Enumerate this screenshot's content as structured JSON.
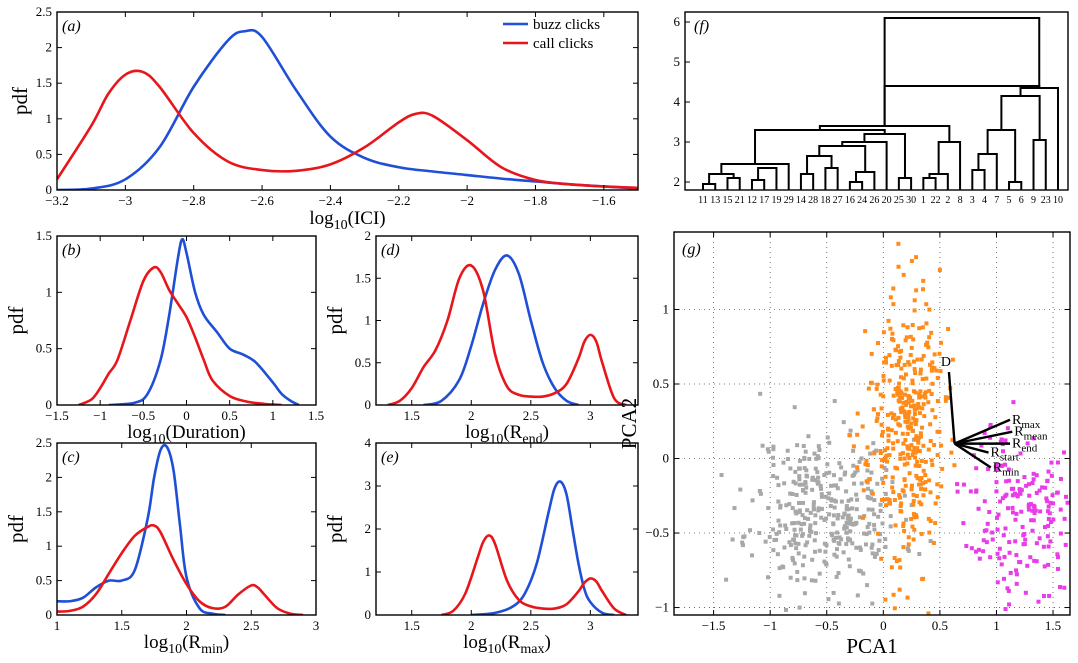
{
  "colors": {
    "buzz": "#1f4fd6",
    "call": "#e8161b",
    "cluster_gray": "#a8a8a8",
    "cluster_orange": "#ff8c1a",
    "cluster_magenta": "#e83de8"
  },
  "chart_data": [
    {
      "panel": "(a)",
      "type": "line",
      "xlabel_base": "log",
      "xlabel_sub": "10",
      "xlabel_rest": "(ICI)",
      "ylabel": "pdf",
      "xlim": [
        -3.2,
        -1.5
      ],
      "ylim": [
        0,
        2.5
      ],
      "xticks": [
        -3.2,
        -3,
        -2.8,
        -2.6,
        -2.4,
        -2.2,
        -2,
        -1.8,
        -1.6
      ],
      "xtick_labels": [
        "−3.2",
        "−3",
        "−2.8",
        "−2.6",
        "−2.4",
        "−2.2",
        "−2",
        "−1.8",
        "−1.6"
      ],
      "yticks": [
        0,
        0.5,
        1,
        1.5,
        2,
        2.5
      ],
      "ytick_labels": [
        "0",
        "0.5",
        "1",
        "1.5",
        "2",
        "2.5"
      ],
      "legend": [
        "buzz clicks",
        "call clicks"
      ],
      "legend_position": "top-right",
      "series": [
        {
          "name": "buzz clicks",
          "color_key": "buzz",
          "x": [
            -3.2,
            -3.1,
            -3.0,
            -2.9,
            -2.8,
            -2.7,
            -2.65,
            -2.6,
            -2.5,
            -2.4,
            -2.3,
            -2.2,
            -2.1,
            -2.0,
            -1.9,
            -1.8,
            -1.7,
            -1.6,
            -1.5
          ],
          "y": [
            0.0,
            0.02,
            0.15,
            0.6,
            1.45,
            2.1,
            2.23,
            2.15,
            1.4,
            0.75,
            0.45,
            0.32,
            0.26,
            0.21,
            0.16,
            0.12,
            0.08,
            0.05,
            0.02
          ]
        },
        {
          "name": "call clicks",
          "color_key": "call",
          "x": [
            -3.2,
            -3.1,
            -3.05,
            -3.0,
            -2.95,
            -2.9,
            -2.8,
            -2.7,
            -2.6,
            -2.5,
            -2.4,
            -2.3,
            -2.2,
            -2.15,
            -2.1,
            -2.0,
            -1.9,
            -1.8,
            -1.7,
            -1.6,
            -1.5
          ],
          "y": [
            0.15,
            0.9,
            1.35,
            1.62,
            1.66,
            1.45,
            0.8,
            0.4,
            0.28,
            0.27,
            0.36,
            0.6,
            0.95,
            1.07,
            1.04,
            0.7,
            0.32,
            0.14,
            0.08,
            0.05,
            0.03
          ]
        }
      ]
    },
    {
      "panel": "(b)",
      "type": "line",
      "xlabel_base": "log",
      "xlabel_sub": "10",
      "xlabel_rest": "(Duration)",
      "ylabel": "pdf",
      "xlim": [
        -1.5,
        1.5
      ],
      "ylim": [
        0,
        1.5
      ],
      "xticks": [
        -1.5,
        -1,
        -0.5,
        0,
        0.5,
        1,
        1.5
      ],
      "xtick_labels": [
        "−1.5",
        "−1",
        "−0.5",
        "0",
        "0.5",
        "1",
        "1.5"
      ],
      "yticks": [
        0,
        0.5,
        1,
        1.5
      ],
      "ytick_labels": [
        "0",
        "0.5",
        "1",
        "1.5"
      ],
      "series": [
        {
          "name": "",
          "color_key": "buzz",
          "x": [
            -0.9,
            -0.6,
            -0.45,
            -0.3,
            -0.2,
            -0.1,
            -0.05,
            0,
            0.1,
            0.2,
            0.35,
            0.5,
            0.65,
            0.8,
            1.0,
            1.1,
            1.2,
            1.3
          ],
          "y": [
            0,
            0.02,
            0.1,
            0.4,
            0.8,
            1.3,
            1.47,
            1.35,
            1.0,
            0.8,
            0.65,
            0.5,
            0.45,
            0.38,
            0.2,
            0.1,
            0.04,
            0
          ]
        },
        {
          "name": "",
          "color_key": "call",
          "x": [
            -1.25,
            -1.1,
            -1.0,
            -0.9,
            -0.8,
            -0.65,
            -0.5,
            -0.38,
            -0.3,
            -0.2,
            -0.1,
            0,
            0.1,
            0.2,
            0.3,
            0.5,
            0.7,
            0.9,
            1.1
          ],
          "y": [
            0,
            0.05,
            0.15,
            0.28,
            0.4,
            0.75,
            1.1,
            1.22,
            1.18,
            1.02,
            0.9,
            0.78,
            0.6,
            0.4,
            0.22,
            0.08,
            0.03,
            0.01,
            0
          ]
        }
      ]
    },
    {
      "panel": "(c)",
      "type": "line",
      "xlabel_base": "log",
      "xlabel_sub": "10",
      "xlabel_rest": "(R",
      "xlabel_sub2": "min",
      "xlabel_close": ")",
      "ylabel": "pdf",
      "xlim": [
        1,
        3
      ],
      "ylim": [
        0,
        2.5
      ],
      "xticks": [
        1,
        1.5,
        2,
        2.5,
        3
      ],
      "xtick_labels": [
        "1",
        "1.5",
        "2",
        "2.5",
        "3"
      ],
      "yticks": [
        0,
        0.5,
        1,
        1.5,
        2,
        2.5
      ],
      "ytick_labels": [
        "0",
        "0.5",
        "1",
        "1.5",
        "2",
        "2.5"
      ],
      "series": [
        {
          "name": "",
          "color_key": "buzz",
          "x": [
            1.0,
            1.1,
            1.2,
            1.3,
            1.4,
            1.5,
            1.6,
            1.7,
            1.75,
            1.8,
            1.85,
            1.9,
            1.95,
            2.0,
            2.1,
            2.2,
            2.3
          ],
          "y": [
            0.2,
            0.2,
            0.25,
            0.4,
            0.5,
            0.5,
            0.65,
            1.4,
            2.0,
            2.4,
            2.44,
            2.1,
            1.3,
            0.55,
            0.1,
            0.02,
            0
          ]
        },
        {
          "name": "",
          "color_key": "call",
          "x": [
            1.0,
            1.1,
            1.2,
            1.3,
            1.4,
            1.5,
            1.6,
            1.7,
            1.75,
            1.8,
            1.9,
            2.0,
            2.1,
            2.2,
            2.3,
            2.4,
            2.5,
            2.55,
            2.6,
            2.7,
            2.8,
            2.9
          ],
          "y": [
            0.05,
            0.06,
            0.12,
            0.3,
            0.6,
            0.9,
            1.15,
            1.28,
            1.3,
            1.2,
            0.8,
            0.45,
            0.2,
            0.1,
            0.12,
            0.3,
            0.43,
            0.4,
            0.3,
            0.1,
            0.02,
            0
          ]
        }
      ]
    },
    {
      "panel": "(d)",
      "type": "line",
      "xlabel_base": "log",
      "xlabel_sub": "10",
      "xlabel_rest": "(R",
      "xlabel_sub2": "end",
      "xlabel_close": ")",
      "ylabel": "pdf",
      "xlim": [
        1.2,
        3.4
      ],
      "ylim": [
        0,
        2
      ],
      "xticks": [
        1.5,
        2,
        2.5,
        3
      ],
      "xtick_labels": [
        "1.5",
        "2",
        "2.5",
        "3"
      ],
      "yticks": [
        0,
        0.5,
        1,
        1.5,
        2
      ],
      "ytick_labels": [
        "0",
        "0.5",
        "1",
        "1.5",
        "2"
      ],
      "series": [
        {
          "name": "",
          "color_key": "buzz",
          "x": [
            1.6,
            1.75,
            1.9,
            2.0,
            2.1,
            2.2,
            2.3,
            2.4,
            2.5,
            2.6,
            2.7,
            2.8,
            2.9
          ],
          "y": [
            0,
            0.05,
            0.3,
            0.7,
            1.2,
            1.6,
            1.77,
            1.55,
            1.0,
            0.5,
            0.2,
            0.05,
            0
          ]
        },
        {
          "name": "",
          "color_key": "call",
          "x": [
            1.3,
            1.4,
            1.5,
            1.6,
            1.7,
            1.8,
            1.9,
            2.0,
            2.1,
            2.2,
            2.3,
            2.4,
            2.5,
            2.6,
            2.7,
            2.8,
            2.9,
            2.95,
            3.0,
            3.05,
            3.1,
            3.2,
            3.3
          ],
          "y": [
            0,
            0.05,
            0.2,
            0.45,
            0.65,
            1.0,
            1.5,
            1.65,
            1.35,
            0.6,
            0.22,
            0.12,
            0.1,
            0.1,
            0.14,
            0.25,
            0.55,
            0.75,
            0.83,
            0.75,
            0.5,
            0.08,
            0
          ]
        }
      ]
    },
    {
      "panel": "(e)",
      "type": "line",
      "xlabel_base": "log",
      "xlabel_sub": "10",
      "xlabel_rest": "(R",
      "xlabel_sub2": "max",
      "xlabel_close": ")",
      "ylabel": "pdf",
      "xlim": [
        1.2,
        3.4
      ],
      "ylim": [
        0,
        4
      ],
      "xticks": [
        1.5,
        2,
        2.5,
        3
      ],
      "xtick_labels": [
        "1.5",
        "2",
        "2.5",
        "3"
      ],
      "yticks": [
        0,
        1,
        2,
        3,
        4
      ],
      "ytick_labels": [
        "0",
        "1",
        "2",
        "3",
        "4"
      ],
      "series": [
        {
          "name": "",
          "color_key": "buzz",
          "x": [
            2.0,
            2.2,
            2.35,
            2.45,
            2.55,
            2.65,
            2.7,
            2.75,
            2.8,
            2.85,
            2.9,
            2.95,
            3.0,
            3.1,
            3.2
          ],
          "y": [
            0,
            0.05,
            0.2,
            0.5,
            1.2,
            2.4,
            2.95,
            3.1,
            2.8,
            2.0,
            1.2,
            0.6,
            0.3,
            0.05,
            0
          ]
        },
        {
          "name": "",
          "color_key": "call",
          "x": [
            1.75,
            1.85,
            1.95,
            2.05,
            2.1,
            2.15,
            2.2,
            2.3,
            2.4,
            2.5,
            2.6,
            2.7,
            2.8,
            2.9,
            2.95,
            3.0,
            3.05,
            3.1,
            3.2,
            3.3
          ],
          "y": [
            0,
            0.1,
            0.5,
            1.3,
            1.7,
            1.85,
            1.65,
            0.8,
            0.35,
            0.2,
            0.15,
            0.15,
            0.25,
            0.55,
            0.75,
            0.85,
            0.78,
            0.55,
            0.15,
            0
          ]
        }
      ]
    },
    {
      "panel": "(f)",
      "type": "dendrogram",
      "ylim": [
        1.8,
        6.25
      ],
      "yticks": [
        2,
        3,
        4,
        5,
        6
      ],
      "ytick_labels": [
        "2",
        "3",
        "4",
        "5",
        "6"
      ],
      "leaves": [
        "11",
        "13",
        "15",
        "21",
        "12",
        "17",
        "19",
        "29",
        "14",
        "28",
        "18",
        "27",
        "16",
        "24",
        "26",
        "20",
        "25",
        "30",
        "1",
        "22",
        "2",
        "8",
        "3",
        "4",
        "7",
        "5",
        "6",
        "9",
        "23",
        "10"
      ],
      "merges": [
        [
          0,
          1,
          1.95
        ],
        [
          2,
          3,
          2.1
        ],
        [
          4,
          5,
          2.05
        ],
        [
          30,
          31,
          2.2
        ],
        [
          32,
          6,
          2.35
        ],
        [
          33,
          7,
          2.45
        ],
        [
          8,
          9,
          2.2
        ],
        [
          10,
          11,
          2.35
        ],
        [
          36,
          37,
          2.65
        ],
        [
          12,
          13,
          2.0
        ],
        [
          39,
          14,
          2.25
        ],
        [
          38,
          40,
          2.9
        ],
        [
          41,
          15,
          3.0
        ],
        [
          16,
          17,
          2.1
        ],
        [
          42,
          43,
          3.2
        ],
        [
          35,
          44,
          3.3
        ],
        [
          18,
          19,
          2.1
        ],
        [
          20,
          46,
          2.2
        ],
        [
          47,
          21,
          3.0
        ],
        [
          45,
          48,
          3.4
        ],
        [
          22,
          23,
          2.3
        ],
        [
          50,
          24,
          2.7
        ],
        [
          25,
          26,
          2.0
        ],
        [
          51,
          52,
          3.3
        ],
        [
          27,
          28,
          3.05
        ],
        [
          53,
          54,
          4.15
        ],
        [
          55,
          29,
          4.35
        ],
        [
          49,
          56,
          4.4
        ],
        [
          57,
          57,
          6.1
        ]
      ]
    },
    {
      "panel": "(g)",
      "type": "scatter",
      "xlabel": "PCA1",
      "ylabel": "PCA2",
      "xlim": [
        -1.85,
        1.65
      ],
      "ylim": [
        -1.05,
        1.52
      ],
      "xticks": [
        -1.5,
        -1,
        -0.5,
        0,
        0.5,
        1,
        1.5
      ],
      "xtick_labels": [
        "−1.5",
        "−1",
        "−0.5",
        "0",
        "0.5",
        "1",
        "1.5"
      ],
      "yticks": [
        -1,
        -0.5,
        0,
        0.5,
        1
      ],
      "ytick_labels": [
        "−1",
        "−0.5",
        "0",
        "0.5",
        "1"
      ],
      "grid": true,
      "clusters": [
        {
          "color_key": "cluster_gray",
          "center": [
            -0.5,
            -0.35
          ],
          "spread": [
            0.33,
            0.27
          ],
          "count": 360,
          "seed": 11
        },
        {
          "color_key": "cluster_orange",
          "center": [
            0.2,
            0.2
          ],
          "spread": [
            0.17,
            0.45
          ],
          "count": 380,
          "seed": 23
        },
        {
          "color_key": "cluster_magenta",
          "center": [
            1.2,
            -0.35
          ],
          "spread": [
            0.23,
            0.3
          ],
          "count": 190,
          "seed": 37
        }
      ],
      "biplot": {
        "origin": [
          0.63,
          0.1
        ],
        "vectors": [
          {
            "label": "D",
            "sub": "",
            "tip": [
              0.58,
              0.58
            ]
          },
          {
            "label": "R",
            "sub": "max",
            "tip": [
              1.12,
              0.26
            ]
          },
          {
            "label": "R",
            "sub": "mean",
            "tip": [
              1.14,
              0.18
            ]
          },
          {
            "label": "R",
            "sub": "end",
            "tip": [
              1.12,
              0.1
            ]
          },
          {
            "label": "R",
            "sub": "start",
            "tip": [
              0.93,
              0.04
            ]
          },
          {
            "label": "R",
            "sub": "min",
            "tip": [
              0.95,
              -0.06
            ]
          }
        ]
      }
    }
  ]
}
